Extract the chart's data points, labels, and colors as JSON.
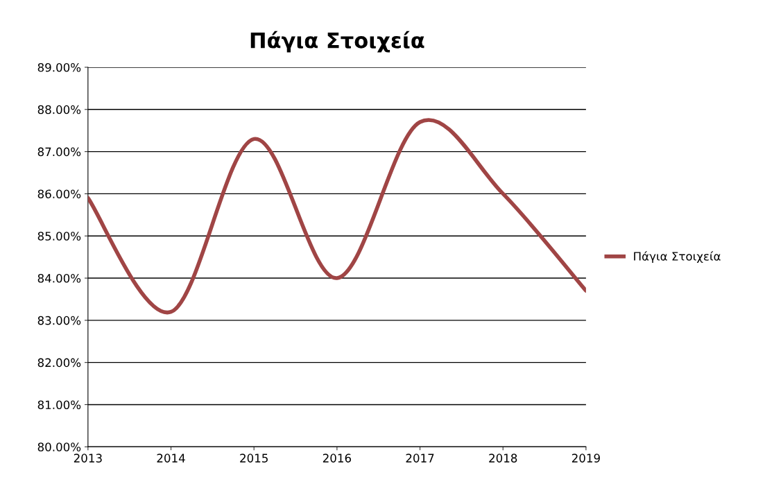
{
  "chart_data": {
    "type": "line",
    "title": "Πάγια Στοιχεία",
    "x": [
      2013,
      2014,
      2015,
      2016,
      2017,
      2018,
      2019
    ],
    "series": [
      {
        "name": "Πάγια Στοιχεία",
        "color": "#a04545",
        "values": [
          85.9,
          83.2,
          87.3,
          84.0,
          87.7,
          86.0,
          83.7
        ]
      }
    ],
    "xlim": [
      2013,
      2019
    ],
    "xticks": [
      2013,
      2014,
      2015,
      2016,
      2017,
      2018,
      2019
    ],
    "ylim": [
      80,
      89
    ],
    "yticks": [
      {
        "value": 80,
        "label": "80.00%"
      },
      {
        "value": 81,
        "label": "81.00%"
      },
      {
        "value": 82,
        "label": "82.00%"
      },
      {
        "value": 83,
        "label": "83.00%"
      },
      {
        "value": 84,
        "label": "84.00%"
      },
      {
        "value": 85,
        "label": "85.00%"
      },
      {
        "value": 86,
        "label": "86.00%"
      },
      {
        "value": 87,
        "label": "87.00%"
      },
      {
        "value": 88,
        "label": "88.00%"
      },
      {
        "value": 89,
        "label": "89.00%"
      }
    ],
    "grid": "y",
    "legend": "right",
    "marker": "none",
    "line_style": "solid"
  }
}
